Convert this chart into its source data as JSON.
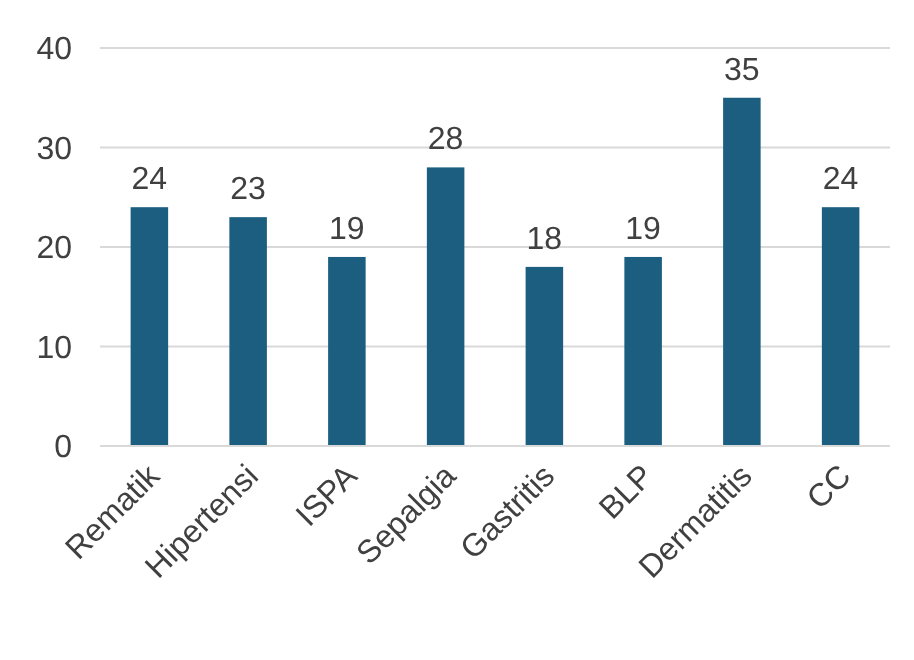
{
  "chart_data": {
    "type": "bar",
    "categories": [
      "Rematik",
      "Hipertensi",
      "ISPA",
      "Sepalgia",
      "Gastritis",
      "BLP",
      "Dermatitis",
      "CC"
    ],
    "values": [
      24,
      23,
      19,
      28,
      18,
      19,
      35,
      24
    ],
    "color": "#1b5e80",
    "ylim": [
      0,
      40
    ],
    "yticks": [
      0,
      10,
      20,
      30,
      40
    ],
    "grid": "y",
    "data_labels": true
  }
}
